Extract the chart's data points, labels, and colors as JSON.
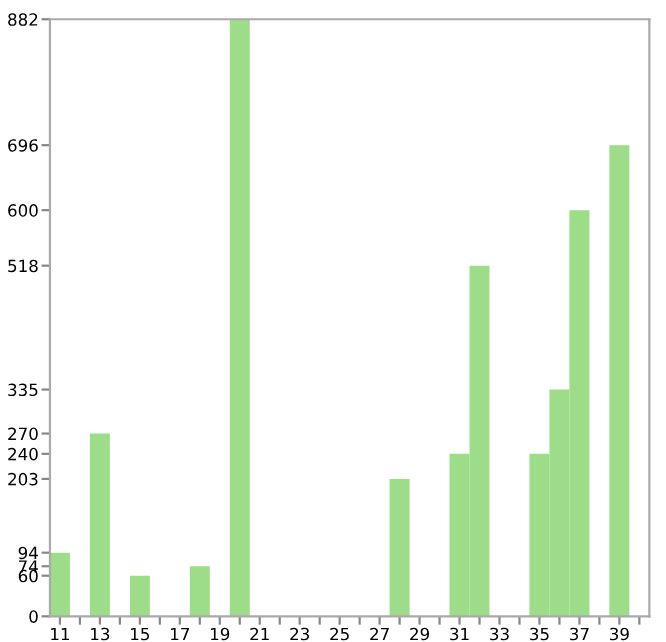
{
  "chart_data": {
    "type": "bar",
    "categories": [
      "11",
      null,
      "13",
      null,
      "15",
      null,
      "17",
      null,
      "19",
      null,
      "21",
      null,
      "23",
      null,
      "25",
      null,
      "27",
      null,
      "29",
      null,
      "31",
      null,
      "33",
      null,
      "35",
      null,
      "37",
      null,
      "39",
      null
    ],
    "values": [
      94,
      0,
      270,
      0,
      60,
      0,
      0,
      74,
      0,
      882,
      0,
      0,
      0,
      0,
      0,
      0,
      0,
      203,
      0,
      0,
      240,
      518,
      0,
      0,
      240,
      335,
      600,
      0,
      696,
      0
    ],
    "color": "#9ddc88",
    "ylim": [
      0,
      882
    ],
    "yticks": [
      0,
      60,
      74,
      94,
      203,
      240,
      270,
      335,
      518,
      600,
      696,
      882
    ],
    "grid": false
  }
}
